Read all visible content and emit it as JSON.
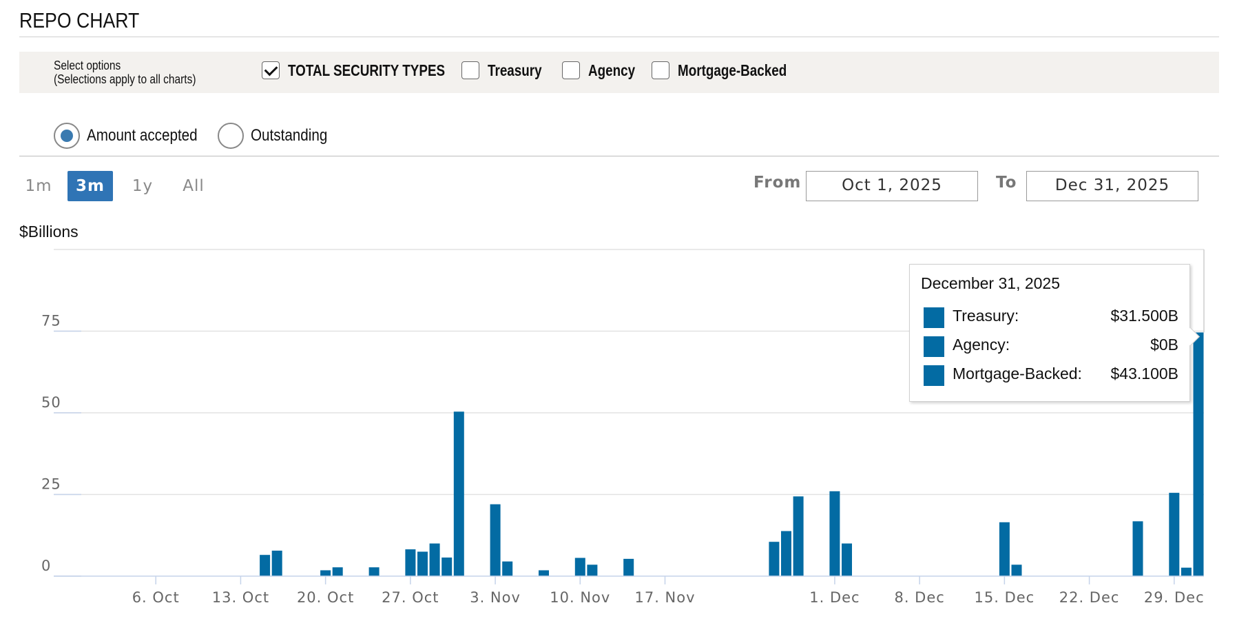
{
  "header": {
    "title": "REPO CHART"
  },
  "options": {
    "hint_line1": "Select options",
    "hint_line2": "(Selections apply to all charts)",
    "checkboxes": [
      {
        "label": "TOTAL SECURITY TYPES",
        "checked": true
      },
      {
        "label": "Treasury",
        "checked": false
      },
      {
        "label": "Agency",
        "checked": false
      },
      {
        "label": "Mortgage-Backed",
        "checked": false
      }
    ]
  },
  "mode": {
    "amount_label": "Amount accepted",
    "outstanding_label": "Outstanding",
    "selected": "Amount accepted"
  },
  "range": {
    "buttons": [
      "1m",
      "3m",
      "1y",
      "All"
    ],
    "active": "3m",
    "from_label": "From",
    "from_value": "Oct 1, 2025",
    "to_label": "To",
    "to_value": "Dec 31, 2025"
  },
  "colors": {
    "bar": "#036ba3",
    "active_button": "#2f74b5",
    "options_bg": "#f3f1ee"
  },
  "chart_data": {
    "type": "bar",
    "ylabel": "$Billions",
    "ylim": [
      0,
      100
    ],
    "yticks": [
      0,
      25,
      50,
      75
    ],
    "xlim": [
      "2025-09-29",
      "2025-12-31"
    ],
    "xticks": [
      {
        "date": "2025-10-06",
        "label": "6. Oct"
      },
      {
        "date": "2025-10-13",
        "label": "13. Oct"
      },
      {
        "date": "2025-10-20",
        "label": "20. Oct"
      },
      {
        "date": "2025-10-27",
        "label": "27. Oct"
      },
      {
        "date": "2025-11-03",
        "label": "3. Nov"
      },
      {
        "date": "2025-11-10",
        "label": "10. Nov"
      },
      {
        "date": "2025-11-17",
        "label": "17. Nov"
      },
      {
        "date": "2025-12-01",
        "label": "1. Dec"
      },
      {
        "date": "2025-12-08",
        "label": "8. Dec"
      },
      {
        "date": "2025-12-15",
        "label": "15. Dec"
      },
      {
        "date": "2025-12-22",
        "label": "22. Dec"
      },
      {
        "date": "2025-12-29",
        "label": "29. Dec"
      }
    ],
    "grid": true,
    "points": [
      {
        "date": "2025-10-15",
        "value": 6.5
      },
      {
        "date": "2025-10-16",
        "value": 7.8
      },
      {
        "date": "2025-10-20",
        "value": 1.8
      },
      {
        "date": "2025-10-21",
        "value": 2.7
      },
      {
        "date": "2025-10-24",
        "value": 2.7
      },
      {
        "date": "2025-10-27",
        "value": 8.2
      },
      {
        "date": "2025-10-28",
        "value": 7.5
      },
      {
        "date": "2025-10-29",
        "value": 10.0
      },
      {
        "date": "2025-10-30",
        "value": 5.7
      },
      {
        "date": "2025-10-31",
        "value": 50.35
      },
      {
        "date": "2025-11-03",
        "value": 22.0
      },
      {
        "date": "2025-11-04",
        "value": 4.5
      },
      {
        "date": "2025-11-07",
        "value": 1.8
      },
      {
        "date": "2025-11-10",
        "value": 5.6
      },
      {
        "date": "2025-11-11",
        "value": 3.5
      },
      {
        "date": "2025-11-14",
        "value": 5.3
      },
      {
        "date": "2025-11-26",
        "value": 10.5
      },
      {
        "date": "2025-11-27",
        "value": 13.8
      },
      {
        "date": "2025-11-28",
        "value": 24.4
      },
      {
        "date": "2025-12-01",
        "value": 26.0
      },
      {
        "date": "2025-12-02",
        "value": 10.0
      },
      {
        "date": "2025-12-15",
        "value": 16.5
      },
      {
        "date": "2025-12-16",
        "value": 3.5
      },
      {
        "date": "2025-12-26",
        "value": 16.8
      },
      {
        "date": "2025-12-29",
        "value": 25.5
      },
      {
        "date": "2025-12-30",
        "value": 2.6
      },
      {
        "date": "2025-12-31",
        "value": 74.6
      }
    ],
    "tooltip": {
      "date": "December 31, 2025",
      "rows": [
        {
          "name": "Treasury:",
          "value": "$31.500B"
        },
        {
          "name": "Agency:",
          "value": "$0B"
        },
        {
          "name": "Mortgage-Backed:",
          "value": "$43.100B"
        }
      ]
    }
  }
}
